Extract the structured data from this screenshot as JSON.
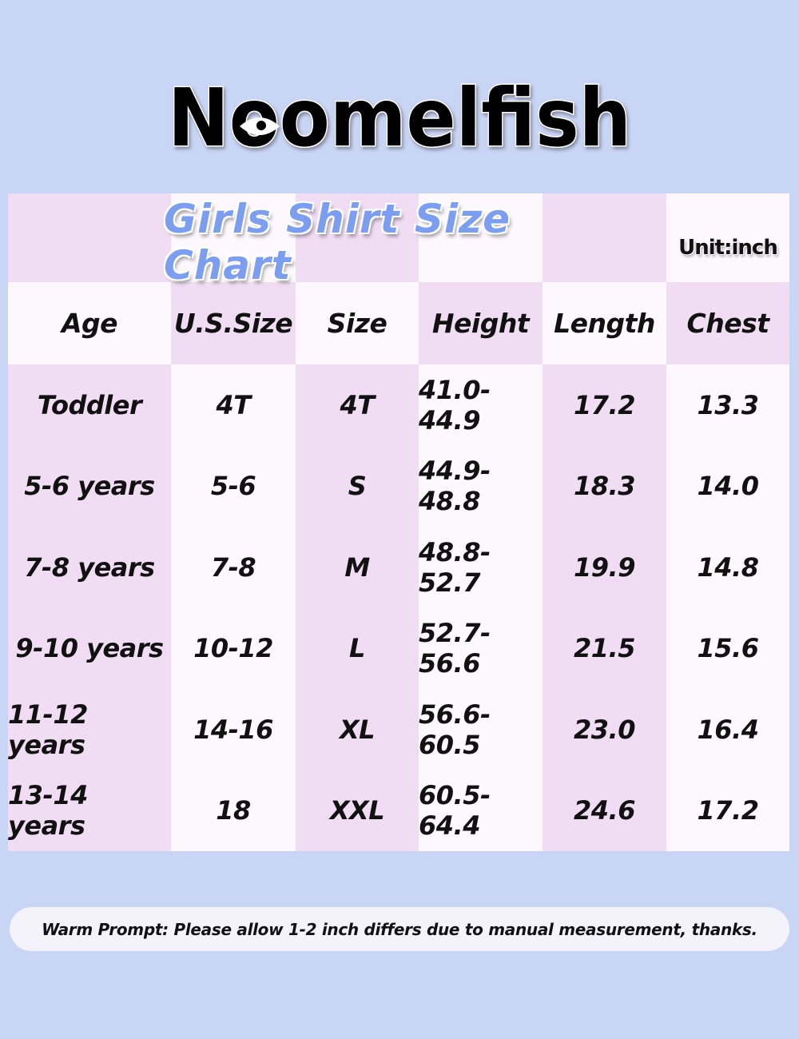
{
  "brand": {
    "name": "Noomelfish"
  },
  "chart": {
    "title": "Girls Shirt Size Chart",
    "unit": "Unit:inch",
    "columns": [
      "Age",
      "U.S.Size",
      "Size",
      "Height",
      "Length",
      "Chest"
    ],
    "rows": [
      [
        "Toddler",
        "4T",
        "4T",
        "41.0-44.9",
        "17.2",
        "13.3"
      ],
      [
        "5-6 years",
        "5-6",
        "S",
        "44.9-48.8",
        "18.3",
        "14.0"
      ],
      [
        "7-8 years",
        "7-8",
        "M",
        "48.8-52.7",
        "19.9",
        "14.8"
      ],
      [
        "9-10 years",
        "10-12",
        "L",
        "52.7-56.6",
        "21.5",
        "15.6"
      ],
      [
        "11-12 years",
        "14-16",
        "XL",
        "56.6-60.5",
        "23.0",
        "16.4"
      ],
      [
        "13-14 years",
        "18",
        "XXL",
        "60.5-64.4",
        "24.6",
        "17.2"
      ]
    ]
  },
  "footer": {
    "prompt": "Warm Prompt: Please allow 1-2 inch differs due to manual measurement, thanks."
  },
  "colors": {
    "background": "#c9d5f5",
    "pink": "#f0dcf3",
    "white": "#fdf8fd",
    "title": "#7b9ef0"
  }
}
